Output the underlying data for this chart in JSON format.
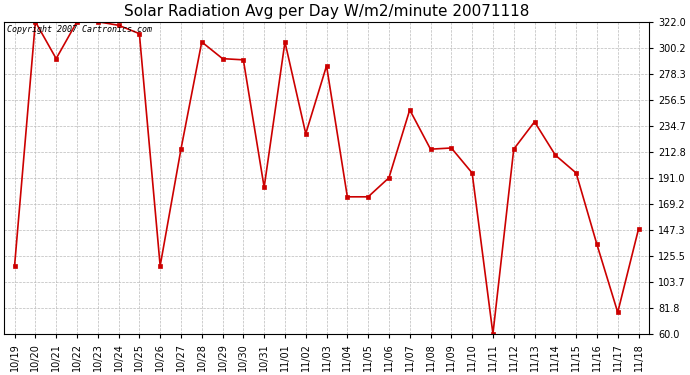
{
  "title": "Solar Radiation Avg per Day W/m2/minute 20071118",
  "copyright_text": "Copyright 2007 Cartronics.com",
  "labels": [
    "10/19",
    "10/20",
    "10/21",
    "10/22",
    "10/23",
    "10/24",
    "10/25",
    "10/26",
    "10/27",
    "10/28",
    "10/29",
    "10/30",
    "10/31",
    "11/01",
    "11/02",
    "11/03",
    "11/04",
    "11/05",
    "11/06",
    "11/07",
    "11/08",
    "11/09",
    "11/10",
    "11/11",
    "11/12",
    "11/13",
    "11/14",
    "11/15",
    "11/16",
    "11/17",
    "11/18"
  ],
  "values": [
    117,
    322,
    291,
    322,
    322,
    319,
    312,
    117,
    215,
    305,
    291,
    290,
    183,
    305,
    228,
    285,
    175,
    175,
    191,
    248,
    215,
    216,
    195,
    60,
    215,
    238,
    210,
    195,
    135,
    78,
    148
  ],
  "line_color": "#cc0000",
  "marker_color": "#cc0000",
  "bg_color": "#ffffff",
  "grid_color": "#bbbbbb",
  "ylim_min": 60.0,
  "ylim_max": 322.0,
  "yticks": [
    60.0,
    81.8,
    103.7,
    125.5,
    147.3,
    169.2,
    191.0,
    212.8,
    234.7,
    256.5,
    278.3,
    300.2,
    322.0
  ],
  "title_fontsize": 11,
  "axis_fontsize": 7,
  "copyright_fontsize": 6
}
